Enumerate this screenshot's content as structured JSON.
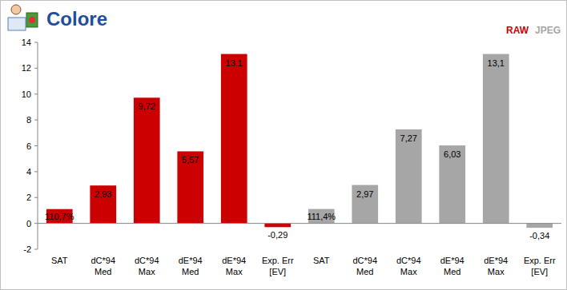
{
  "chart_data": {
    "type": "bar",
    "title": "Colore",
    "categories": [
      "SAT",
      "dC*94\nMed",
      "dC*94\nMax",
      "dE*94\nMed",
      "dE*94\nMax",
      "Exp. Err\n[EV]",
      "SAT",
      "dC*94\nMed",
      "dC*94\nMax",
      "dE*94\nMed",
      "dE*94\nMax",
      "Exp. Err\n[EV]"
    ],
    "series": [
      {
        "name": "RAW",
        "color": "#cc0000",
        "values": [
          1.107,
          2.93,
          9.72,
          5.57,
          13.1,
          -0.29,
          null,
          null,
          null,
          null,
          null,
          null
        ],
        "value_labels": [
          "110,7%",
          "2,93",
          "9,72",
          "5,57",
          "13,1",
          "-0,29",
          null,
          null,
          null,
          null,
          null,
          null
        ]
      },
      {
        "name": "JPEG",
        "color": "#a6a6a6",
        "values": [
          null,
          null,
          null,
          null,
          null,
          null,
          1.114,
          2.97,
          7.27,
          6.03,
          13.1,
          -0.34
        ],
        "value_labels": [
          null,
          null,
          null,
          null,
          null,
          null,
          "111,4%",
          "2,97",
          "7,27",
          "6,03",
          "13,1",
          "-0,34"
        ]
      }
    ],
    "ylim": [
      -2,
      14
    ],
    "yticks": [
      -2,
      0,
      2,
      4,
      6,
      8,
      10,
      12,
      14
    ],
    "grid": false,
    "data_labels": true,
    "legend": "top-right"
  }
}
